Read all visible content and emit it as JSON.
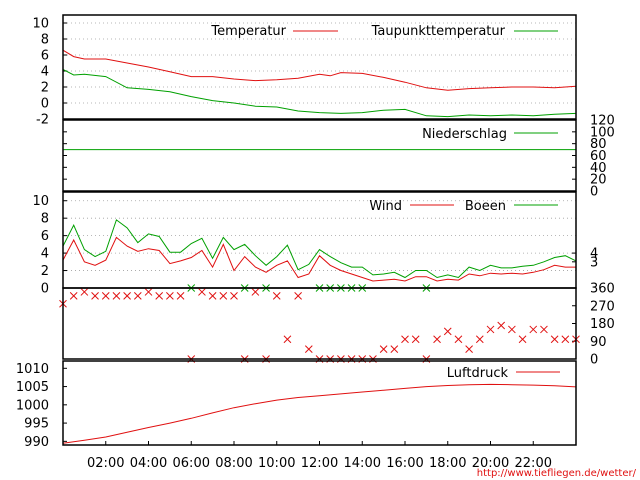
{
  "footer_url": "http://www.tiefliegen.de/wetter/",
  "x_ticks": [
    "02:00",
    "04:00",
    "06:00",
    "08:00",
    "10:00",
    "12:00",
    "14:00",
    "16:00",
    "18:00",
    "20:00",
    "22:00"
  ],
  "colors": {
    "red": "#e01010",
    "green": "#00a000",
    "axis": "#000000"
  },
  "chart_data": [
    {
      "type": "line",
      "x_unit": "hour",
      "xlim": [
        0,
        24
      ],
      "ylim": [
        -2,
        11
      ],
      "y_ticks": [
        -2,
        0,
        2,
        4,
        6,
        8,
        10
      ],
      "grid": true,
      "legend_position": "top",
      "series": [
        {
          "name": "Temperatur",
          "color": "#e01010",
          "x": [
            0,
            0.5,
            1,
            2,
            3,
            4,
            5,
            6,
            7,
            8,
            9,
            10,
            11,
            12,
            12.5,
            13,
            14,
            15,
            16,
            17,
            18,
            19,
            20,
            21,
            22,
            23,
            24
          ],
          "y": [
            6.6,
            5.8,
            5.5,
            5.5,
            5.0,
            4.5,
            3.9,
            3.3,
            3.3,
            3.0,
            2.8,
            2.9,
            3.1,
            3.6,
            3.4,
            3.8,
            3.7,
            3.2,
            2.6,
            1.9,
            1.6,
            1.8,
            1.9,
            2.0,
            2.0,
            1.9,
            2.1
          ]
        },
        {
          "name": "Taupunkttemperatur",
          "color": "#00a000",
          "x": [
            0,
            0.5,
            1,
            2,
            3,
            4,
            5,
            6,
            7,
            8,
            9,
            10,
            11,
            12,
            13,
            14,
            15,
            16,
            17,
            18,
            19,
            20,
            21,
            22,
            23,
            24
          ],
          "y": [
            4.2,
            3.5,
            3.6,
            3.3,
            1.9,
            1.7,
            1.4,
            0.8,
            0.3,
            0.0,
            -0.4,
            -0.5,
            -1.0,
            -1.2,
            -1.3,
            -1.2,
            -0.9,
            -0.8,
            -1.6,
            -1.7,
            -1.5,
            -1.6,
            -1.5,
            -1.6,
            -1.4,
            -1.3
          ]
        }
      ]
    },
    {
      "type": "line",
      "x_unit": "hour",
      "xlim": [
        0,
        24
      ],
      "ylim": [
        0,
        120
      ],
      "y_ticks": [
        0,
        20,
        40,
        60,
        80,
        100,
        120
      ],
      "legend_position": "top",
      "series": [
        {
          "name": "Niederschlag",
          "color": "#00a000",
          "x": [
            0,
            24
          ],
          "y": [
            70,
            70
          ]
        }
      ]
    },
    {
      "type": "line",
      "x_unit": "hour",
      "xlim": [
        0,
        24
      ],
      "ylim": [
        0,
        11
      ],
      "y_ticks": [
        0,
        2,
        4,
        6,
        8,
        10
      ],
      "y2_ticks": [
        3,
        4
      ],
      "grid": true,
      "legend_position": "top",
      "series": [
        {
          "name": "Wind",
          "color": "#e01010",
          "x": [
            0,
            0.5,
            1,
            1.5,
            2,
            2.5,
            3,
            3.5,
            4,
            4.5,
            5,
            5.5,
            6,
            6.5,
            7,
            7.5,
            8,
            8.5,
            9,
            9.5,
            10,
            10.5,
            11,
            11.5,
            12,
            12.5,
            13,
            13.5,
            14,
            14.5,
            15,
            15.5,
            16,
            16.5,
            17,
            17.5,
            18,
            18.5,
            19,
            19.5,
            20,
            20.5,
            21,
            21.5,
            22,
            22.5,
            23,
            23.5,
            24
          ],
          "y": [
            3.2,
            5.5,
            3.0,
            2.6,
            3.2,
            5.8,
            4.8,
            4.2,
            4.5,
            4.3,
            2.8,
            3.1,
            3.5,
            4.3,
            2.4,
            5.0,
            2.0,
            3.6,
            2.4,
            1.8,
            2.6,
            3.1,
            1.2,
            1.6,
            3.7,
            2.6,
            2.0,
            1.6,
            1.2,
            0.8,
            0.9,
            1.0,
            0.8,
            1.3,
            1.3,
            0.8,
            1.0,
            0.9,
            1.6,
            1.4,
            1.7,
            1.6,
            1.7,
            1.6,
            1.8,
            2.1,
            2.6,
            2.4,
            2.4
          ]
        },
        {
          "name": "Boeen",
          "color": "#00a000",
          "x": [
            0,
            0.5,
            1,
            1.5,
            2,
            2.5,
            3,
            3.5,
            4,
            4.5,
            5,
            5.5,
            6,
            6.5,
            7,
            7.5,
            8,
            8.5,
            9,
            9.5,
            10,
            10.5,
            11,
            11.5,
            12,
            12.5,
            13,
            13.5,
            14,
            14.5,
            15,
            15.5,
            16,
            16.5,
            17,
            17.5,
            18,
            18.5,
            19,
            19.5,
            20,
            20.5,
            21,
            21.5,
            22,
            22.5,
            23,
            23.5,
            24
          ],
          "y": [
            4.8,
            7.2,
            4.4,
            3.6,
            4.2,
            7.8,
            6.9,
            5.2,
            6.2,
            5.9,
            4.1,
            4.1,
            5.1,
            5.7,
            3.4,
            5.8,
            4.4,
            5.0,
            3.7,
            2.6,
            3.6,
            4.9,
            2.1,
            2.7,
            4.4,
            3.6,
            2.9,
            2.4,
            2.4,
            1.5,
            1.6,
            1.8,
            1.2,
            2.0,
            2.0,
            1.2,
            1.5,
            1.2,
            2.4,
            2.0,
            2.6,
            2.3,
            2.3,
            2.5,
            2.6,
            3.0,
            3.5,
            3.7,
            3.1
          ]
        }
      ]
    },
    {
      "type": "scatter",
      "x_unit": "hour",
      "xlim": [
        0,
        24
      ],
      "ylim": [
        0,
        360
      ],
      "y2_ticks": [
        0,
        90,
        180,
        270,
        360
      ],
      "series": [
        {
          "name": "",
          "color": "#e01010",
          "marker": "x",
          "x": [
            0,
            0.5,
            1,
            1.5,
            2,
            2.5,
            3,
            3.5,
            4,
            4.5,
            5,
            5.5,
            6,
            6.5,
            7,
            7.5,
            8,
            8.5,
            9,
            9.5,
            10,
            10.5,
            11,
            11.5,
            12,
            12.5,
            13,
            13.5,
            14,
            14.5,
            15,
            15.5,
            16,
            16.5,
            17,
            17.5,
            18,
            18.5,
            19,
            19.5,
            20,
            20.5,
            21,
            21.5,
            22,
            22.5,
            23,
            23.5,
            24
          ],
          "y": [
            280,
            320,
            340,
            320,
            320,
            320,
            320,
            320,
            340,
            320,
            320,
            320,
            0,
            340,
            320,
            320,
            320,
            0,
            340,
            0,
            320,
            100,
            320,
            50,
            0,
            0,
            0,
            0,
            0,
            0,
            50,
            50,
            100,
            100,
            0,
            100,
            140,
            100,
            50,
            100,
            150,
            170,
            150,
            100,
            150,
            150,
            100,
            100,
            100
          ]
        },
        {
          "name": "",
          "color": "#00a000",
          "marker": "x",
          "x": [
            6,
            8.5,
            9.5,
            12,
            12.5,
            13,
            13.5,
            14,
            17
          ],
          "y": [
            360,
            360,
            360,
            360,
            360,
            360,
            360,
            360,
            360
          ]
        }
      ]
    },
    {
      "type": "line",
      "x_unit": "hour",
      "xlim": [
        0,
        24
      ],
      "ylim": [
        989,
        1012
      ],
      "y_ticks": [
        990,
        995,
        1000,
        1005,
        1010
      ],
      "legend_position": "top",
      "series": [
        {
          "name": "Luftdruck",
          "color": "#e01010",
          "x": [
            0,
            1,
            2,
            3,
            4,
            5,
            6,
            7,
            8,
            9,
            10,
            11,
            12,
            13,
            14,
            15,
            16,
            17,
            18,
            19,
            20,
            21,
            22,
            23,
            24
          ],
          "y": [
            989.5,
            990.3,
            991.2,
            992.5,
            993.8,
            995.0,
            996.3,
            997.8,
            999.2,
            1000.3,
            1001.3,
            1002.0,
            1002.5,
            1003.0,
            1003.5,
            1004.0,
            1004.5,
            1005.0,
            1005.3,
            1005.5,
            1005.6,
            1005.5,
            1005.4,
            1005.2,
            1004.9
          ]
        }
      ]
    }
  ]
}
